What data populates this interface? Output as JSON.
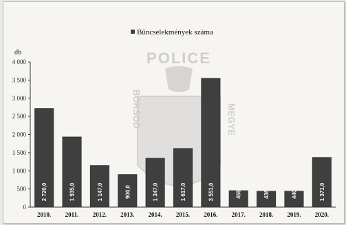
{
  "chart_data": {
    "type": "bar",
    "title": "",
    "legend": "Bűncselekmények száma",
    "legend_position": "top-center",
    "ylabel": "db",
    "xlabel": "",
    "ylim": [
      0,
      4000
    ],
    "yticks": [
      0,
      500,
      1000,
      1500,
      2000,
      2500,
      3000,
      3500,
      4000
    ],
    "ytick_labels": [
      "0",
      "500",
      "1 000",
      "1 500",
      "2 000",
      "2 500",
      "3 000",
      "3 500",
      "4 000"
    ],
    "categories": [
      "2010.",
      "2011.",
      "2012.",
      "2013.",
      "2014.",
      "2015.",
      "2016.",
      "2017.",
      "2018.",
      "2019.",
      "2020."
    ],
    "values": [
      2720,
      1935,
      1147,
      900,
      1347,
      1617,
      3551,
      455,
      438,
      440,
      1371
    ],
    "data_labels": [
      "2 720,0",
      "1 935,0",
      "1 147,0",
      "900,0",
      "1 347,0",
      "1 617,0",
      "3 551,0",
      "455,0",
      "438,0",
      "440,0",
      "1 371,0"
    ],
    "grid": false,
    "colors": {
      "bar": "#3f3f3f",
      "axis": "#333333"
    }
  },
  "watermark": {
    "text": "POLICE",
    "ring_left": "BORSOD",
    "ring_right": "MEGYE"
  }
}
